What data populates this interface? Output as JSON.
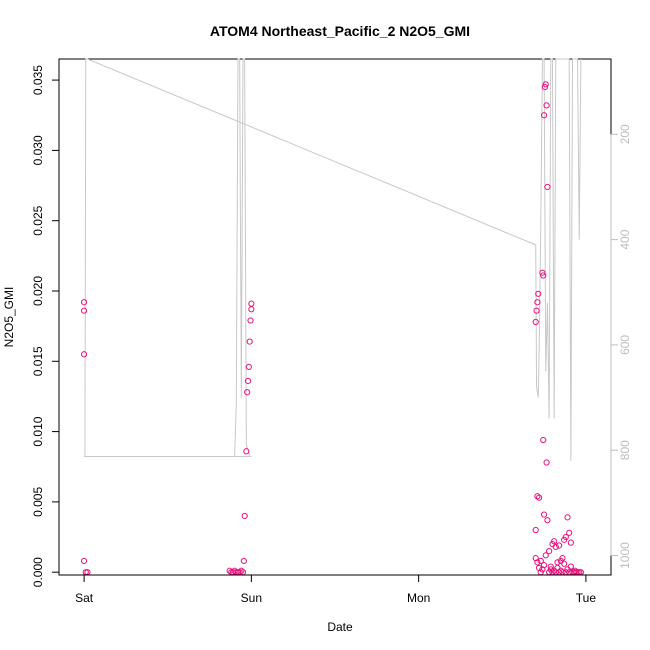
{
  "chart_data": {
    "type": "scatter",
    "title": "ATOM4 Northeast_Pacific_2 N2O5_GMI",
    "xlabel": "Date",
    "ylabel": "N2O5_GMI",
    "x_ticks": [
      {
        "label": "Sat",
        "value": 0
      },
      {
        "label": "Sun",
        "value": 1
      },
      {
        "label": "Mon",
        "value": 2
      },
      {
        "label": "Tue",
        "value": 3
      }
    ],
    "xlim": [
      -0.15,
      3.15
    ],
    "ylim": [
      -0.0002,
      0.0365
    ],
    "y_ticks": [
      "0.000",
      "0.005",
      "0.010",
      "0.015",
      "0.020",
      "0.025",
      "0.030",
      "0.035"
    ],
    "y2_ticks": [
      "200",
      "400",
      "600",
      "800",
      "1000"
    ],
    "y2lim": [
      1037,
      57
    ],
    "colors": {
      "points": "#e8117f",
      "line": "#c8c8c8",
      "axis": "#000000",
      "right_axis": "#bdbdbd"
    },
    "series": [
      {
        "type": "scatter",
        "points": [
          [
            0.0,
            0.0192
          ],
          [
            0.0,
            0.0186
          ],
          [
            0.0,
            0.0155
          ],
          [
            0.0,
            0.0008
          ],
          [
            0.01,
            0.0
          ],
          [
            0.02,
            0.0
          ],
          [
            0.87,
            0.0001
          ],
          [
            0.88,
            0.0
          ],
          [
            0.89,
            0.0
          ],
          [
            0.9,
            0.0001
          ],
          [
            0.91,
            0.0
          ],
          [
            0.92,
            0.0
          ],
          [
            0.93,
            0.0
          ],
          [
            0.94,
            0.0001
          ],
          [
            0.95,
            0.0
          ],
          [
            0.955,
            0.0008
          ],
          [
            0.96,
            0.004
          ],
          [
            0.97,
            0.0086
          ],
          [
            0.975,
            0.0128
          ],
          [
            0.98,
            0.0136
          ],
          [
            0.985,
            0.0146
          ],
          [
            0.99,
            0.0164
          ],
          [
            0.995,
            0.0179
          ],
          [
            1.0,
            0.0187
          ],
          [
            1.0,
            0.0191
          ],
          [
            2.7,
            0.003
          ],
          [
            2.71,
            0.0054
          ],
          [
            2.72,
            0.0053
          ],
          [
            2.7,
            0.001
          ],
          [
            2.71,
            0.0007
          ],
          [
            2.72,
            0.0003
          ],
          [
            2.7,
            0.0178
          ],
          [
            2.705,
            0.0186
          ],
          [
            2.71,
            0.0192
          ],
          [
            2.715,
            0.0198
          ],
          [
            2.73,
            0.0
          ],
          [
            2.74,
            0.0002
          ],
          [
            2.745,
            0.0094
          ],
          [
            2.75,
            0.0041
          ],
          [
            2.74,
            0.0213
          ],
          [
            2.745,
            0.0211
          ],
          [
            2.75,
            0.0325
          ],
          [
            2.755,
            0.0345
          ],
          [
            2.76,
            0.0347
          ],
          [
            2.765,
            0.0332
          ],
          [
            2.77,
            0.0274
          ],
          [
            2.765,
            0.0078
          ],
          [
            2.77,
            0.0037
          ],
          [
            2.78,
            0.0015
          ],
          [
            2.79,
            0.0002
          ],
          [
            2.8,
            0.002
          ],
          [
            2.81,
            0.0022
          ],
          [
            2.82,
            0.0018
          ],
          [
            2.83,
            0.0007
          ],
          [
            2.84,
            0.0019
          ],
          [
            2.85,
            0.0008
          ],
          [
            2.86,
            0.001
          ],
          [
            2.87,
            0.0023
          ],
          [
            2.88,
            0.0025
          ],
          [
            2.89,
            0.0039
          ],
          [
            2.9,
            0.0028
          ],
          [
            2.91,
            0.0021
          ],
          [
            2.92,
            0.0
          ],
          [
            2.93,
            0.0
          ],
          [
            2.94,
            0.0
          ],
          [
            2.95,
            0.0
          ],
          [
            2.96,
            0.0
          ],
          [
            2.97,
            0.0
          ],
          [
            2.78,
            0.0
          ],
          [
            2.8,
            0.0
          ],
          [
            2.82,
            0.0
          ],
          [
            2.84,
            0.0
          ],
          [
            2.86,
            0.0
          ],
          [
            2.88,
            0.0
          ],
          [
            2.9,
            0.0
          ],
          [
            2.75,
            0.0005
          ],
          [
            2.73,
            0.0008
          ],
          [
            2.76,
            0.0012
          ],
          [
            2.79,
            0.0004
          ],
          [
            2.81,
            0.0001
          ],
          [
            2.83,
            0.0003
          ],
          [
            2.85,
            0.0001
          ],
          [
            2.87,
            0.0006
          ],
          [
            2.89,
            0.0002
          ],
          [
            2.91,
            0.0004
          ],
          [
            2.935,
            0.0001
          ]
        ]
      },
      {
        "type": "line",
        "points": [
          [
            0.0,
            812
          ],
          [
            0.005,
            812
          ],
          [
            0.01,
            57
          ],
          [
            0.02,
            57
          ],
          [
            2.7,
            410
          ],
          [
            2.705,
            680
          ],
          [
            2.715,
            700
          ],
          [
            2.72,
            620
          ],
          [
            2.73,
            380
          ],
          [
            2.74,
            57
          ],
          [
            2.75,
            57
          ],
          [
            2.76,
            650
          ],
          [
            2.77,
            520
          ],
          [
            2.78,
            740
          ],
          [
            2.79,
            57
          ],
          [
            2.8,
            57
          ],
          [
            2.81,
            740
          ],
          [
            2.82,
            57
          ],
          [
            2.83,
            57
          ],
          [
            2.84,
            57
          ],
          [
            2.85,
            57
          ],
          [
            2.86,
            57
          ],
          [
            2.87,
            57
          ],
          [
            2.88,
            57
          ],
          [
            2.9,
            57
          ],
          [
            2.91,
            820
          ],
          [
            2.92,
            57
          ],
          [
            2.93,
            57
          ],
          [
            2.95,
            57
          ],
          [
            2.96,
            400
          ],
          [
            2.97,
            57
          ]
        ]
      },
      {
        "type": "line",
        "points": [
          [
            0.0,
            812
          ],
          [
            0.9,
            812
          ],
          [
            0.91,
            710
          ],
          [
            0.92,
            57
          ],
          [
            0.93,
            57
          ],
          [
            0.94,
            700
          ],
          [
            0.95,
            57
          ],
          [
            0.96,
            57
          ],
          [
            0.97,
            790
          ],
          [
            0.98,
            800
          ],
          [
            0.99,
            812
          ],
          [
            1.0,
            812
          ],
          [
            0.0,
            812
          ]
        ]
      }
    ]
  }
}
